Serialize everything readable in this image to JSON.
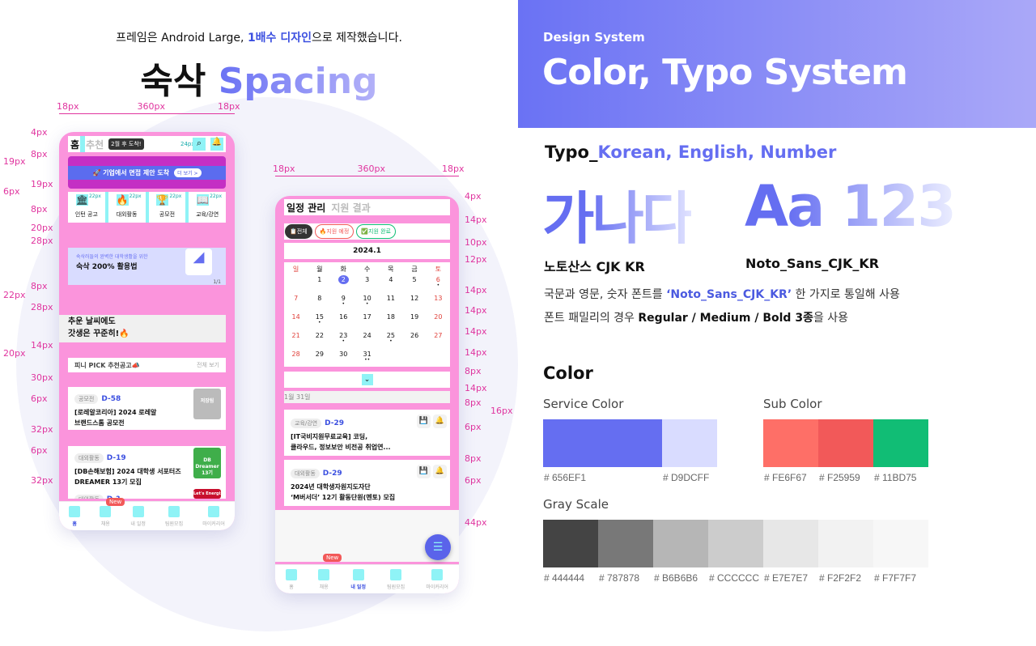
{
  "left": {
    "intro_prefix": "프레임은 Android Large, ",
    "intro_highlight": "1배수 디자인",
    "intro_suffix": "으로 제작했습니다.",
    "title_ko": "숙삭",
    "title_en": "Spacing",
    "phone1_widths": [
      "18px",
      "360px",
      "18px"
    ],
    "phone1_spacing": [
      [
        "4px",
        163
      ],
      [
        "8px",
        190
      ],
      [
        "19px",
        199
      ],
      [
        "19px",
        227
      ],
      [
        "6px",
        236
      ],
      [
        "8px",
        258
      ],
      [
        "20px",
        281
      ],
      [
        "28px",
        297
      ],
      [
        "8px",
        353
      ],
      [
        "22px",
        364
      ],
      [
        "28px",
        379
      ],
      [
        "14px",
        426
      ],
      [
        "20px",
        436
      ],
      [
        "30px",
        466
      ],
      [
        "6px",
        492
      ],
      [
        "32px",
        530
      ],
      [
        "6px",
        556
      ],
      [
        "32px",
        593
      ]
    ],
    "phone2_widths": [
      "18px",
      "360px",
      "18px"
    ],
    "phone2_spacing": [
      [
        "4px",
        242
      ],
      [
        "14px",
        271
      ],
      [
        "10px",
        299
      ],
      [
        "12px",
        320
      ],
      [
        "14px",
        358
      ],
      [
        "14px",
        383
      ],
      [
        "14px",
        409
      ],
      [
        "14px",
        435
      ],
      [
        "8px",
        458
      ],
      [
        "14px",
        479
      ],
      [
        "8px",
        497
      ],
      [
        "16px",
        507
      ],
      [
        "6px",
        527
      ],
      [
        "8px",
        566
      ],
      [
        "6px",
        593
      ],
      [
        "44px",
        645
      ]
    ]
  },
  "home": {
    "tab_home": "홈",
    "tab_recommend": "추천",
    "tooltip": "2월 후 도착!",
    "icon_size": "24px",
    "banner_text": "🚀 기업에서 면접 제안 도착",
    "banner_more": "더 보기 >",
    "categories": [
      {
        "label": "인턴 공고",
        "icon": "bank-icon"
      },
      {
        "label": "대외활동",
        "icon": "fire-icon"
      },
      {
        "label": "공모전",
        "icon": "trophy-icon"
      },
      {
        "label": "교육/강연",
        "icon": "book-icon"
      }
    ],
    "category_icon_size": "22px",
    "promo_sub": "숙삭러들의 완벽한 대학생활을 위한",
    "promo_title": "숙삭 200% 활용법",
    "promo_page": "1/1",
    "hero_line1": "추운 날씨에도",
    "hero_line2": "갓생은 꾸준히!🔥",
    "pick_title": "피니 PICK 추천공고📣",
    "pick_more": "전체 보기",
    "cards": [
      {
        "tag": "공모전",
        "dday": "D-58",
        "title1": "[로레알코리아] 2024 로레알",
        "title2": "브랜드스톰 공모전",
        "thumb": "저장됨",
        "color": "#bbbbbb"
      },
      {
        "tag": "대외활동",
        "dday": "D-19",
        "title1": "[DB손해보험] 2024 대학생 서포터즈",
        "title2": "DREAMER 13기 모집",
        "thumb": "DB Dreamer 13기",
        "color": "#3fae4a"
      },
      {
        "tag": "대외활동",
        "dday": "D-?",
        "title1": "",
        "title2": "",
        "thumb": "Let's Energize",
        "color": "#c8102e"
      }
    ],
    "new_badge": "New",
    "nav": [
      "홈",
      "채용",
      "내 일정",
      "팀원모집",
      "마이커리어"
    ]
  },
  "schedule": {
    "tab_active": "일정 관리",
    "tab_inactive": "지원 결과",
    "chips": [
      "📋전체",
      "🔥지원 예정",
      "✅지원 완료"
    ],
    "month": "2024.1",
    "weekdays": [
      "일",
      "월",
      "화",
      "수",
      "목",
      "금",
      "토"
    ],
    "weeks": [
      [
        "",
        "1",
        "2",
        "3",
        "4",
        "5",
        "6"
      ],
      [
        "7",
        "8",
        "9",
        "10",
        "11",
        "12",
        "13"
      ],
      [
        "14",
        "15",
        "16",
        "17",
        "18",
        "19",
        "20"
      ],
      [
        "21",
        "22",
        "23",
        "24",
        "25",
        "26",
        "27"
      ],
      [
        "28",
        "29",
        "30",
        "31",
        "",
        "",
        ""
      ]
    ],
    "today": "2",
    "dots": {
      "6": 1,
      "9": 1,
      "10": 1,
      "15": 1,
      "23": 1,
      "25": 1,
      "31": 2
    },
    "date_header": "1월 31일",
    "cards": [
      {
        "tag": "교육/강연",
        "dday": "D-29",
        "title1": "[IT국비지원무료교육] 코딩,",
        "title2": "클라우드, 정보보안 비전공 취업연..."
      },
      {
        "tag": "대외활동",
        "dday": "D-29",
        "title1": "2024년 대학생자원지도자단",
        "title2": "‘M버서더’ 12기 활동단원(멘토) 모집"
      }
    ],
    "new_badge": "New",
    "nav": [
      "홈",
      "채용",
      "내 일정",
      "팀원모집",
      "마이커리어"
    ],
    "active_nav": 2
  },
  "right": {
    "eyebrow": "Design System",
    "title": "Color, Typo System",
    "typo_prefix": "Typo_",
    "typo_highlight": "Korean, English, Number",
    "sample_ko": "가나다",
    "sample_en": "Aa 123",
    "font_ko": "노토산스 CJK KR",
    "font_en": "Noto_Sans_CJK_KR",
    "desc1_a": "국문과 영문, 숫자 폰트를 ",
    "desc1_hl": "‘Noto_Sans_CJK_KR’",
    "desc1_b": " 한 가지로 통일해 사용",
    "desc2_a": "폰트 패밀리의 경우 ",
    "desc2_b": "Regular / Medium / Bold 3종",
    "desc2_c": "을 사용",
    "color_title": "Color",
    "service_label": "Service Color",
    "sub_label": "Sub Color",
    "gray_label": "Gray Scale",
    "service": [
      "#656EF1",
      "#D9DCFF"
    ],
    "service_hex": [
      "# 656EF1",
      "# D9DCFF"
    ],
    "sub": [
      "#FE6F67",
      "#F25959",
      "#11BD75"
    ],
    "sub_hex": [
      "# FE6F67",
      "# F25959",
      "# 11BD75"
    ],
    "gray": [
      "#444444",
      "#787878",
      "#B6B6B6",
      "#CCCCCC",
      "#E7E7E7",
      "#F2F2F2",
      "#F7F7F7"
    ],
    "gray_hex": [
      "# 444444",
      "# 787878",
      "# B6B6B6",
      "# CCCCCC",
      "# E7E7E7",
      "# F2F2F2",
      "# F7F7F7"
    ]
  }
}
